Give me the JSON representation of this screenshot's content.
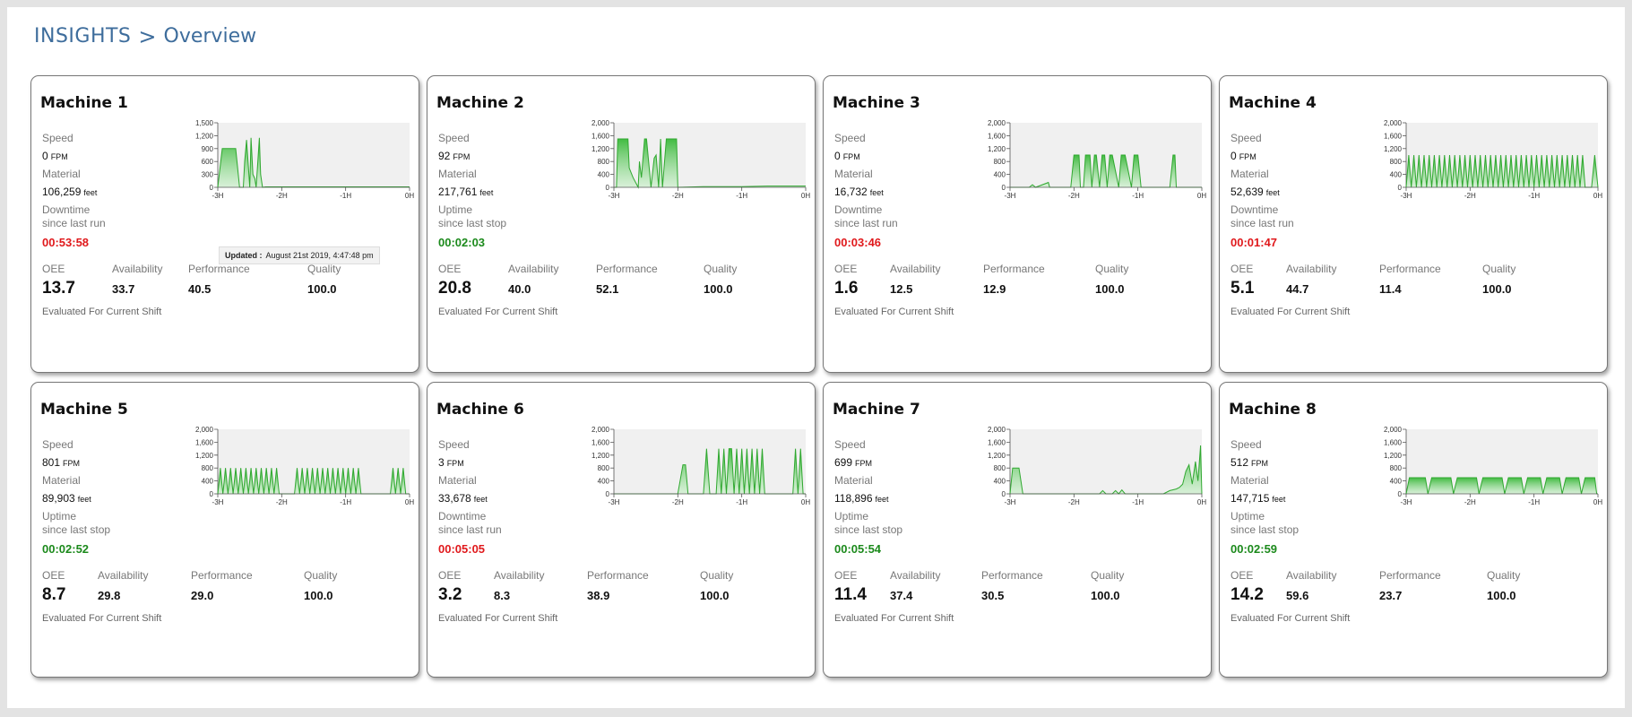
{
  "breadcrumb": {
    "root": "INSIGHTS",
    "separator": ">",
    "current": "Overview"
  },
  "labels": {
    "speed": "Speed",
    "material": "Material",
    "speed_unit": "FPM",
    "material_unit": "feet",
    "oee": "OEE",
    "availability": "Availability",
    "performance": "Performance",
    "quality": "Quality",
    "footnote": "Evaluated For Current Shift",
    "updated_label": "Updated :",
    "updated_value": "August 21st 2019, 4:47:48 pm"
  },
  "colors": {
    "accent": "#3e6d9c",
    "downtime": "#e0191c",
    "uptime": "#1c8a1c",
    "series": "#2fa82f"
  },
  "machines": [
    {
      "name": "Machine 1",
      "speed": "0",
      "material": "106,259",
      "state_label": "Downtime",
      "state_sub": "since last run",
      "timer": "00:53:58",
      "state": "down",
      "oee": "13.7",
      "availability": "33.7",
      "performance": "40.5",
      "quality": "100.0",
      "tooltip": true
    },
    {
      "name": "Machine 2",
      "speed": "92",
      "material": "217,761",
      "state_label": "Uptime",
      "state_sub": "since last stop",
      "timer": "00:02:03",
      "state": "up",
      "oee": "20.8",
      "availability": "40.0",
      "performance": "52.1",
      "quality": "100.0"
    },
    {
      "name": "Machine 3",
      "speed": "0",
      "material": "16,732",
      "state_label": "Downtime",
      "state_sub": "since last run",
      "timer": "00:03:46",
      "state": "down",
      "oee": "1.6",
      "availability": "12.5",
      "performance": "12.9",
      "quality": "100.0"
    },
    {
      "name": "Machine 4",
      "speed": "0",
      "material": "52,639",
      "state_label": "Downtime",
      "state_sub": "since last run",
      "timer": "00:01:47",
      "state": "down",
      "oee": "5.1",
      "availability": "44.7",
      "performance": "11.4",
      "quality": "100.0"
    },
    {
      "name": "Machine 5",
      "speed": "801",
      "material": "89,903",
      "state_label": "Uptime",
      "state_sub": "since last stop",
      "timer": "00:02:52",
      "state": "up",
      "oee": "8.7",
      "availability": "29.8",
      "performance": "29.0",
      "quality": "100.0"
    },
    {
      "name": "Machine 6",
      "speed": "3",
      "material": "33,678",
      "state_label": "Downtime",
      "state_sub": "since last run",
      "timer": "00:05:05",
      "state": "down",
      "oee": "3.2",
      "availability": "8.3",
      "performance": "38.9",
      "quality": "100.0"
    },
    {
      "name": "Machine 7",
      "speed": "699",
      "material": "118,896",
      "state_label": "Uptime",
      "state_sub": "since last stop",
      "timer": "00:05:54",
      "state": "up",
      "oee": "11.4",
      "availability": "37.4",
      "performance": "30.5",
      "quality": "100.0"
    },
    {
      "name": "Machine 8",
      "speed": "512",
      "material": "147,715",
      "state_label": "Uptime",
      "state_sub": "since last stop",
      "timer": "00:02:59",
      "state": "up",
      "oee": "14.2",
      "availability": "59.6",
      "performance": "23.7",
      "quality": "100.0"
    }
  ],
  "chart_data": [
    {
      "type": "area",
      "x_ticks": [
        "-3H",
        "-2H",
        "-1H",
        "0H"
      ],
      "y_ticks": [
        "0",
        "300",
        "600",
        "900",
        "1,200",
        "1,500"
      ],
      "ylim": [
        0,
        1500
      ],
      "series": [
        {
          "x": [
            -3,
            -2.93,
            -2.9,
            -2.72,
            -2.66,
            -2.6,
            -2.58,
            -2.55,
            -2.5,
            -2.48,
            -2.45,
            -2.42,
            -2.4,
            -2.35,
            -2.33,
            -2.3,
            -2.25,
            -2.2,
            -1.5,
            -1,
            -0.5,
            0
          ],
          "values": [
            0,
            900,
            900,
            900,
            0,
            0,
            600,
            1100,
            0,
            1150,
            300,
            200,
            0,
            1150,
            300,
            0,
            10,
            10,
            10,
            10,
            10,
            10
          ]
        }
      ]
    },
    {
      "type": "area",
      "x_ticks": [
        "-3H",
        "-2H",
        "-1H",
        "0H"
      ],
      "y_ticks": [
        "0",
        "400",
        "800",
        "1,200",
        "1,600",
        "2,000"
      ],
      "ylim": [
        0,
        2000
      ],
      "series": [
        {
          "x": [
            -3,
            -2.96,
            -2.94,
            -2.78,
            -2.76,
            -2.7,
            -2.62,
            -2.6,
            -2.57,
            -2.52,
            -2.49,
            -2.42,
            -2.37,
            -2.34,
            -2.3,
            -2.27,
            -2.24,
            -2.18,
            -2.15,
            -2.05,
            -2.02,
            -2,
            -1.6,
            -1,
            -0.6,
            0
          ],
          "values": [
            0,
            0,
            1500,
            1500,
            600,
            300,
            0,
            800,
            300,
            1500,
            1500,
            0,
            900,
            1000,
            0,
            1500,
            0,
            1500,
            1500,
            1500,
            1500,
            0,
            20,
            20,
            40,
            40
          ]
        }
      ]
    },
    {
      "type": "area",
      "x_ticks": [
        "-3H",
        "-2H",
        "-1H",
        "0H"
      ],
      "y_ticks": [
        "0",
        "400",
        "800",
        "1,200",
        "1,600",
        "2,000"
      ],
      "ylim": [
        0,
        2000
      ],
      "series": [
        {
          "x": [
            -3,
            -2.7,
            -2.65,
            -2.6,
            -2.4,
            -2.38,
            -2.35,
            -2.05,
            -2,
            -1.92,
            -1.9,
            -1.85,
            -1.82,
            -1.75,
            -1.72,
            -1.68,
            -1.65,
            -1.6,
            -1.56,
            -1.52,
            -1.48,
            -1.44,
            -1.4,
            -1.3,
            -1.26,
            -1.2,
            -1.1,
            -1.06,
            -1.0,
            -0.95,
            -0.5,
            -0.45,
            -0.42,
            -0.4,
            -0.3,
            0
          ],
          "values": [
            0,
            0,
            80,
            0,
            150,
            0,
            0,
            0,
            1000,
            1000,
            0,
            0,
            1000,
            1000,
            0,
            1000,
            1000,
            0,
            1000,
            1000,
            0,
            1000,
            1000,
            0,
            1000,
            1000,
            0,
            1000,
            1000,
            0,
            0,
            1000,
            1000,
            0,
            0,
            0
          ]
        }
      ]
    },
    {
      "type": "area",
      "x_ticks": [
        "-3H",
        "-2H",
        "-1H",
        "0H"
      ],
      "y_ticks": [
        "0",
        "400",
        "800",
        "1,200",
        "1,600",
        "2,000"
      ],
      "ylim": [
        0,
        2000
      ],
      "series": [
        {
          "x": [
            -3,
            -2.96,
            -2.92,
            -2.88,
            -2.84,
            -2.8,
            -2.76,
            -2.72,
            -2.68,
            -2.64,
            -2.6,
            -2.56,
            -2.52,
            -2.48,
            -2.44,
            -2.4,
            -2.36,
            -2.32,
            -2.28,
            -2.24,
            -2.2,
            -2.16,
            -2.12,
            -2.08,
            -2.04,
            -2,
            -1.96,
            -1.92,
            -1.88,
            -1.84,
            -1.8,
            -1.76,
            -1.72,
            -1.68,
            -1.64,
            -1.6,
            -1.56,
            -1.52,
            -1.48,
            -1.44,
            -1.4,
            -1.36,
            -1.32,
            -1.28,
            -1.24,
            -1.2,
            -1.16,
            -1.12,
            -1.08,
            -1.04,
            -1,
            -0.96,
            -0.92,
            -0.88,
            -0.84,
            -0.8,
            -0.76,
            -0.72,
            -0.68,
            -0.64,
            -0.6,
            -0.56,
            -0.52,
            -0.48,
            -0.44,
            -0.4,
            -0.36,
            -0.32,
            -0.28,
            -0.24,
            -0.2,
            -0.1,
            -0.05,
            0
          ],
          "values": [
            0,
            1000,
            0,
            1000,
            0,
            1000,
            0,
            1000,
            0,
            1000,
            0,
            1000,
            0,
            1000,
            0,
            1000,
            0,
            1000,
            0,
            1000,
            0,
            1000,
            0,
            1000,
            0,
            1000,
            0,
            1000,
            0,
            1000,
            0,
            1000,
            0,
            1000,
            0,
            1000,
            0,
            1000,
            0,
            1000,
            0,
            1000,
            0,
            1000,
            0,
            1000,
            0,
            1000,
            0,
            1000,
            0,
            1000,
            0,
            1000,
            0,
            1000,
            0,
            1000,
            0,
            1000,
            0,
            1000,
            0,
            1000,
            0,
            1000,
            0,
            1000,
            0,
            1000,
            0,
            0,
            1000,
            0
          ]
        }
      ]
    },
    {
      "type": "area",
      "x_ticks": [
        "-3H",
        "-2H",
        "-1H",
        "0H"
      ],
      "y_ticks": [
        "0",
        "400",
        "800",
        "1,200",
        "1,600",
        "2,000"
      ],
      "ylim": [
        0,
        2000
      ],
      "series": [
        {
          "x": [
            -3,
            -2.96,
            -2.92,
            -2.88,
            -2.84,
            -2.8,
            -2.76,
            -2.72,
            -2.68,
            -2.64,
            -2.6,
            -2.56,
            -2.52,
            -2.48,
            -2.44,
            -2.4,
            -2.36,
            -2.32,
            -2.28,
            -2.24,
            -2.2,
            -2.16,
            -2.12,
            -2.08,
            -2.04,
            -1.8,
            -1.76,
            -1.72,
            -1.68,
            -1.64,
            -1.6,
            -1.56,
            -1.52,
            -1.48,
            -1.44,
            -1.4,
            -1.36,
            -1.32,
            -1.28,
            -1.24,
            -1.2,
            -1.16,
            -1.12,
            -1.08,
            -1.04,
            -1.0,
            -0.96,
            -0.92,
            -0.88,
            -0.84,
            -0.8,
            -0.76,
            -0.3,
            -0.26,
            -0.22,
            -0.18,
            -0.14,
            -0.1,
            -0.06,
            0
          ],
          "values": [
            0,
            800,
            0,
            800,
            0,
            800,
            0,
            800,
            0,
            800,
            0,
            800,
            0,
            800,
            0,
            800,
            0,
            800,
            0,
            800,
            0,
            800,
            0,
            800,
            0,
            0,
            800,
            0,
            800,
            0,
            800,
            0,
            800,
            0,
            800,
            0,
            800,
            0,
            800,
            0,
            800,
            0,
            800,
            0,
            800,
            0,
            800,
            0,
            800,
            0,
            800,
            0,
            0,
            800,
            0,
            800,
            0,
            800,
            0,
            0
          ]
        }
      ]
    },
    {
      "type": "area",
      "x_ticks": [
        "-3H",
        "-2H",
        "-1H",
        "0H"
      ],
      "y_ticks": [
        "0",
        "400",
        "800",
        "1,200",
        "1,600",
        "2,000"
      ],
      "ylim": [
        0,
        2000
      ],
      "series": [
        {
          "x": [
            -3,
            -2.0,
            -1.92,
            -1.88,
            -1.84,
            -1.6,
            -1.55,
            -1.5,
            -1.4,
            -1.36,
            -1.32,
            -1.28,
            -1.24,
            -1.2,
            -1.16,
            -1.12,
            -1.08,
            -1.04,
            -1.0,
            -0.96,
            -0.92,
            -0.88,
            -0.84,
            -0.8,
            -0.76,
            -0.72,
            -0.68,
            -0.64,
            -0.5,
            -0.2,
            -0.16,
            -0.12,
            -0.08,
            -0.04,
            0
          ],
          "values": [
            0,
            0,
            900,
            900,
            0,
            0,
            1400,
            0,
            0,
            1400,
            0,
            1400,
            0,
            1400,
            1400,
            0,
            1400,
            0,
            1400,
            0,
            1400,
            0,
            1400,
            0,
            1400,
            0,
            1400,
            0,
            0,
            0,
            1400,
            0,
            1400,
            0,
            0
          ]
        }
      ]
    },
    {
      "type": "area",
      "x_ticks": [
        "-3H",
        "-2H",
        "-1H",
        "0H"
      ],
      "y_ticks": [
        "0",
        "400",
        "800",
        "1,200",
        "1,600",
        "2,000"
      ],
      "ylim": [
        0,
        2000
      ],
      "series": [
        {
          "x": [
            -3,
            -2.96,
            -2.92,
            -2.86,
            -2.8,
            -2.6,
            -2.0,
            -1.6,
            -1.55,
            -1.5,
            -1.4,
            -1.35,
            -1.3,
            -1.25,
            -1.2,
            -1.0,
            -0.8,
            -0.6,
            -0.5,
            -0.4,
            -0.35,
            -0.3,
            -0.25,
            -0.2,
            -0.15,
            -0.1,
            -0.06,
            -0.02,
            0
          ],
          "values": [
            0,
            800,
            800,
            800,
            0,
            0,
            0,
            0,
            100,
            0,
            0,
            100,
            0,
            120,
            0,
            0,
            0,
            0,
            100,
            150,
            200,
            300,
            700,
            900,
            300,
            1000,
            400,
            1500,
            0
          ]
        }
      ]
    },
    {
      "type": "area",
      "x_ticks": [
        "-3H",
        "-2H",
        "-1H",
        "0H"
      ],
      "y_ticks": [
        "0",
        "400",
        "800",
        "1,200",
        "1,600",
        "2,000"
      ],
      "ylim": [
        0,
        2000
      ],
      "series": [
        {
          "x": [
            -3,
            -2.95,
            -2.92,
            -2.7,
            -2.66,
            -2.6,
            -2.56,
            -2.3,
            -2.26,
            -2.2,
            -2.16,
            -1.9,
            -1.86,
            -1.8,
            -1.76,
            -1.5,
            -1.46,
            -1.4,
            -1.36,
            -1.2,
            -1.16,
            -1.1,
            -1.06,
            -0.9,
            -0.86,
            -0.8,
            -0.76,
            -0.6,
            -0.56,
            -0.5,
            -0.46,
            -0.3,
            -0.26,
            -0.2,
            -0.16,
            -0.05,
            -0.02,
            0
          ],
          "values": [
            0,
            500,
            500,
            500,
            0,
            500,
            500,
            500,
            0,
            500,
            500,
            500,
            0,
            500,
            500,
            500,
            0,
            500,
            500,
            500,
            0,
            500,
            500,
            500,
            0,
            500,
            500,
            500,
            0,
            500,
            500,
            500,
            0,
            500,
            500,
            500,
            0,
            0
          ]
        }
      ]
    }
  ]
}
